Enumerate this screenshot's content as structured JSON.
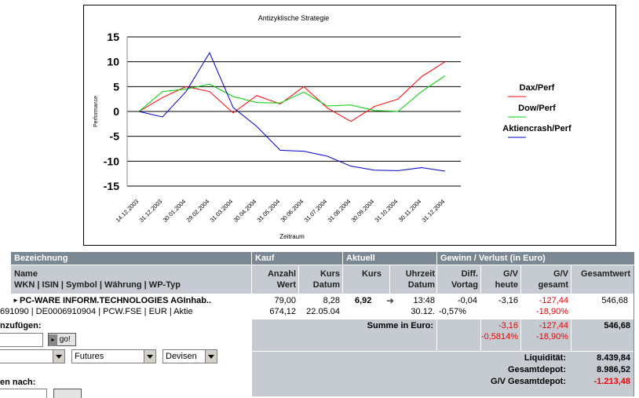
{
  "chart_data": {
    "type": "line",
    "title": "Antizyklische Strategie",
    "xlabel": "Zeitraum",
    "ylabel": "Performance",
    "ylim": [
      -15,
      15
    ],
    "yticks": [
      15,
      10,
      5,
      0,
      -5,
      -10,
      -15
    ],
    "categories": [
      "14.12.2003",
      "31.12.2003",
      "30.01.2004",
      "29.02.2004",
      "31.03.2004",
      "30.04.2004",
      "31.05.2004",
      "30.06.2004",
      "31.07.2004",
      "31.08.2004",
      "30.09.2004",
      "31.10.2004",
      "30.11.2004",
      "31.12.2004"
    ],
    "legend_position": "right",
    "series": [
      {
        "name": "Dax/Perf",
        "color": "#ff0000",
        "values": [
          0,
          2.8,
          5,
          4,
          -0.3,
          3.2,
          1.5,
          5,
          0.7,
          -2,
          1,
          2.5,
          7,
          10
        ]
      },
      {
        "name": "Dow/Perf",
        "color": "#00cc00",
        "values": [
          0,
          4,
          4.5,
          5.5,
          3,
          1.8,
          1.7,
          3.9,
          1.1,
          1.3,
          0.2,
          0,
          4,
          7.2
        ]
      },
      {
        "name": "Aktiencrash/Perf",
        "color": "#0000cc",
        "values": [
          0,
          -1.1,
          4,
          11.8,
          0.8,
          -3,
          -7.8,
          -8,
          -9,
          -11,
          -11.8,
          -11.9,
          -11.3,
          -12
        ]
      }
    ]
  },
  "table": {
    "groups": {
      "bezeichnung": "Bezeichnung",
      "kauf": "Kauf",
      "aktuell": "Aktuell",
      "gewinn": "Gewinn / Verlust  (in Euro)"
    },
    "headers": {
      "name": "Name",
      "ids": "WKN | ISIN | Symbol | Währung | WP-Typ",
      "anzahl": "Anzahl",
      "wert": "Wert",
      "kurs_kauf": "Kurs",
      "datum_kauf": "Datum",
      "kurs": "Kurs",
      "uhrzeit": "Uhrzeit",
      "datum": "Datum",
      "diff": "Diff.",
      "vortag": "Vortag",
      "gv1": "G/V",
      "heute": "heute",
      "gv2": "G/V",
      "gesamt": "gesamt",
      "gesamtwert": "Gesamtwert"
    },
    "row": {
      "name": "PC-WARE INFORM.TECHNOLOGIES AGInhab..",
      "ids": "691090 | DE0006910904 | PCW.FSE | EUR | Aktie",
      "anzahl": "79,00",
      "wert": "674,12",
      "kurs_kauf": "8,28",
      "datum_kauf": "22.05.04",
      "kurs": "6,92",
      "uhrzeit": "13:48",
      "datum": "30.12.",
      "diff": "-0,04",
      "diff_pct": "-0,57%",
      "gv_heute": "-3,16",
      "gv_gesamt": "-127,44",
      "gv_gesamt_pct": "-18,90%",
      "gesamtwert": "546,68"
    },
    "summe": {
      "label": "Summe in Euro:",
      "gv_heute": "-3,16",
      "gv_heute_pct": "-0,5814%",
      "gv_gesamt": "-127,44",
      "gv_gesamt_pct": "-18,90%",
      "gesamtwert": "546,68"
    },
    "totals": {
      "liquiditaet_label": "Liquidität:",
      "liquiditaet": "8.439,84",
      "gesamtdepot_label": "Gesamtdepot:",
      "gesamtdepot": "8.986,52",
      "gv_gesamtdepot_label": "G/V Gesamtdepot:",
      "gv_gesamtdepot": "-1.213,48"
    }
  },
  "form": {
    "add_label": "nzufügen:",
    "go_label": "go!",
    "select2": "Futures",
    "select3": "Devisen",
    "search_label": "en nach:"
  }
}
